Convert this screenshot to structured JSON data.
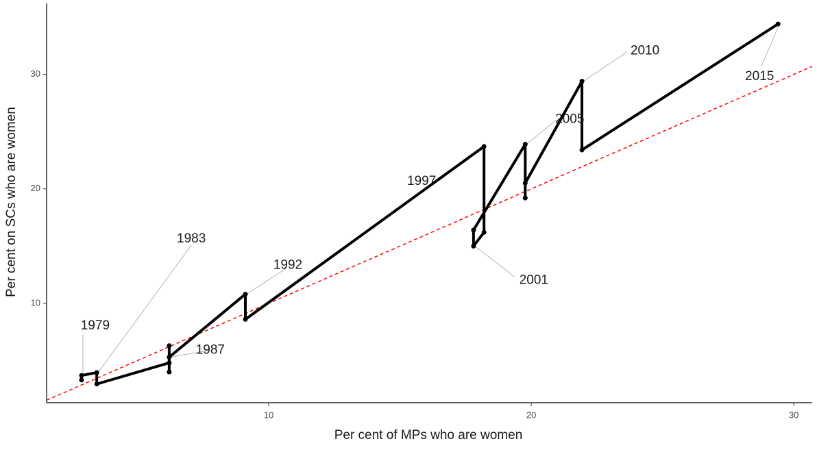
{
  "chart_data": {
    "type": "line",
    "x_label": "Per cent of MPs who are women",
    "y_label": "Per cent on SCs who are women",
    "series": [
      {
        "color": "#000000",
        "x": [
          2.87,
          2.87,
          3.45,
          3.45,
          6.21,
          6.21,
          6.21,
          6.21,
          9.11,
          9.11,
          18.2,
          18.2,
          17.8,
          17.8,
          19.77,
          19.77,
          19.77,
          21.93,
          21.93,
          29.4
        ],
        "values": [
          3.3,
          3.7,
          3.95,
          2.95,
          4.8,
          6.3,
          4.0,
          5.3,
          10.8,
          8.6,
          23.7,
          16.2,
          15.0,
          16.4,
          23.9,
          19.2,
          20.5,
          29.4,
          23.4,
          34.4
        ]
      }
    ],
    "reference_line": {
      "slope": 1,
      "intercept": 0,
      "color": "#ff0000",
      "dashed": true
    },
    "annotations": [
      {
        "label": "1979",
        "x": 2.87,
        "y": 3.7
      },
      {
        "label": "1983",
        "x": 3.45,
        "y": 3.95
      },
      {
        "label": "1987",
        "x": 6.21,
        "y": 5.3
      },
      {
        "label": "1992",
        "x": 9.11,
        "y": 10.8
      },
      {
        "label": "1997",
        "x": 18.2,
        "y": 23.7
      },
      {
        "label": "2001",
        "x": 17.8,
        "y": 15.0
      },
      {
        "label": "2005",
        "x": 19.77,
        "y": 23.9
      },
      {
        "label": "2010",
        "x": 21.93,
        "y": 29.4
      },
      {
        "label": "2015",
        "x": 29.4,
        "y": 34.4
      }
    ],
    "xlim": [
      1.54,
      30.7
    ],
    "xticks": [
      10,
      20,
      30
    ],
    "ylim": [
      1.32,
      36.2
    ],
    "yticks": [
      10,
      20,
      30
    ],
    "grid": false
  }
}
